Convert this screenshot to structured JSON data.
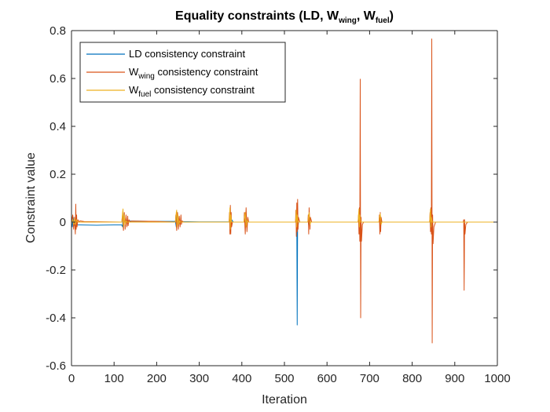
{
  "colors": {
    "ld": "#0072BD",
    "wing": "#D95319",
    "fuel": "#EDB120",
    "axis": "#262626",
    "background": "#ffffff"
  },
  "chart_data": {
    "type": "line",
    "title": {
      "main": "Equality constraints (LD, W",
      "sub1": "wing",
      "sep": ", W",
      "sub2": "fuel",
      "end": ")"
    },
    "xlabel": "Iteration",
    "ylabel": "Constraint value",
    "xlim": [
      0,
      1000
    ],
    "ylim": [
      -0.6,
      0.8
    ],
    "xticks": [
      0,
      100,
      200,
      300,
      400,
      500,
      600,
      700,
      800,
      900,
      1000
    ],
    "yticks": [
      -0.6,
      -0.4,
      -0.2,
      0,
      0.2,
      0.4,
      0.6,
      0.8
    ],
    "xtick_labels": [
      "0",
      "100",
      "200",
      "300",
      "400",
      "500",
      "600",
      "700",
      "800",
      "900",
      "1000"
    ],
    "ytick_labels": [
      "-0.6",
      "-0.4",
      "-0.2",
      "0",
      "0.2",
      "0.4",
      "0.6",
      "0.8"
    ],
    "legend": {
      "location": "top-left",
      "entries": [
        {
          "text": "LD consistency constraint"
        },
        {
          "base": "W",
          "sub": "wing",
          "text": " consistency constraint"
        },
        {
          "base": "W",
          "sub": "fuel",
          "text": " consistency constraint"
        }
      ]
    },
    "series": [
      {
        "name": "LD consistency constraint",
        "points": [
          [
            0,
            0
          ],
          [
            2,
            -0.02
          ],
          [
            4,
            0.02
          ],
          [
            6,
            -0.01
          ],
          [
            8,
            -0.015
          ],
          [
            10,
            -0.005
          ],
          [
            12,
            -0.012
          ],
          [
            20,
            -0.012
          ],
          [
            60,
            -0.013
          ],
          [
            100,
            -0.012
          ],
          [
            118,
            -0.012
          ],
          [
            120,
            -0.02
          ],
          [
            121,
            0.04
          ],
          [
            122,
            -0.01
          ],
          [
            124,
            0.02
          ],
          [
            126,
            -0.01
          ],
          [
            128,
            0.01
          ],
          [
            130,
            0.005
          ],
          [
            150,
            0.004
          ],
          [
            200,
            0.003
          ],
          [
            244,
            0.003
          ],
          [
            246,
            -0.02
          ],
          [
            247,
            0.04
          ],
          [
            248,
            -0.015
          ],
          [
            250,
            0.02
          ],
          [
            252,
            -0.01
          ],
          [
            254,
            0.005
          ],
          [
            260,
            0.002
          ],
          [
            300,
            0.001
          ],
          [
            372,
            0.001
          ],
          [
            373,
            -0.02
          ],
          [
            374,
            0.04
          ],
          [
            375,
            -0.015
          ],
          [
            376,
            0.01
          ],
          [
            380,
            0.0
          ],
          [
            408,
            0.0
          ],
          [
            409,
            -0.02
          ],
          [
            410,
            0.03
          ],
          [
            411,
            -0.01
          ],
          [
            412,
            0.0
          ],
          [
            528,
            0.0
          ],
          [
            529,
            0.02
          ],
          [
            530,
            -0.43
          ],
          [
            531,
            0.02
          ],
          [
            532,
            -0.02
          ],
          [
            533,
            0.0
          ],
          [
            556,
            0.0
          ],
          [
            557,
            -0.01
          ],
          [
            558,
            0.02
          ],
          [
            559,
            -0.01
          ],
          [
            560,
            0.0
          ],
          [
            676,
            0.0
          ],
          [
            677,
            0.02
          ],
          [
            678,
            -0.02
          ],
          [
            679,
            0.02
          ],
          [
            680,
            0.0
          ],
          [
            724,
            0.0
          ],
          [
            725,
            0.03
          ],
          [
            726,
            -0.02
          ],
          [
            727,
            0.01
          ],
          [
            728,
            0.0
          ],
          [
            842,
            0.0
          ],
          [
            843,
            -0.02
          ],
          [
            844,
            0.03
          ],
          [
            845,
            -0.01
          ],
          [
            846,
            0.0
          ],
          [
            1000,
            0.0
          ]
        ]
      },
      {
        "name": "Wwing consistency constraint",
        "points": [
          [
            0,
            0
          ],
          [
            3,
            0.03
          ],
          [
            5,
            -0.03
          ],
          [
            7,
            0.02
          ],
          [
            9,
            -0.05
          ],
          [
            10,
            0.075
          ],
          [
            11,
            -0.03
          ],
          [
            12,
            0.03
          ],
          [
            13,
            -0.02
          ],
          [
            15,
            0.01
          ],
          [
            18,
            0.0
          ],
          [
            20,
            0.005
          ],
          [
            30,
            0.002
          ],
          [
            118,
            0.0
          ],
          [
            120,
            0.03
          ],
          [
            122,
            -0.035
          ],
          [
            124,
            0.04
          ],
          [
            126,
            -0.03
          ],
          [
            128,
            0.03
          ],
          [
            130,
            -0.02
          ],
          [
            132,
            0.025
          ],
          [
            133,
            -0.015
          ],
          [
            135,
            0.01
          ],
          [
            138,
            0.0
          ],
          [
            140,
            0.004
          ],
          [
            200,
            0.003
          ],
          [
            244,
            0.0
          ],
          [
            245,
            0.03
          ],
          [
            247,
            -0.035
          ],
          [
            249,
            0.04
          ],
          [
            251,
            -0.03
          ],
          [
            253,
            0.025
          ],
          [
            255,
            -0.02
          ],
          [
            257,
            0.03
          ],
          [
            258,
            -0.01
          ],
          [
            260,
            0.005
          ],
          [
            263,
            0.0
          ],
          [
            370,
            0.0
          ],
          [
            371,
            0.04
          ],
          [
            372,
            -0.05
          ],
          [
            373,
            0.07
          ],
          [
            374,
            -0.05
          ],
          [
            375,
            0.04
          ],
          [
            376,
            -0.02
          ],
          [
            378,
            0.0
          ],
          [
            405,
            0.0
          ],
          [
            406,
            0.04
          ],
          [
            408,
            -0.05
          ],
          [
            410,
            0.06
          ],
          [
            412,
            -0.04
          ],
          [
            414,
            0.02
          ],
          [
            416,
            0.0
          ],
          [
            526,
            0.0
          ],
          [
            527,
            0.05
          ],
          [
            528,
            -0.06
          ],
          [
            529,
            0.08
          ],
          [
            530,
            -0.04
          ],
          [
            531,
            0.095
          ],
          [
            532,
            -0.03
          ],
          [
            533,
            0.02
          ],
          [
            536,
            0.0
          ],
          [
            555,
            0.0
          ],
          [
            556,
            0.03
          ],
          [
            557,
            -0.05
          ],
          [
            558,
            0.06
          ],
          [
            560,
            -0.03
          ],
          [
            561,
            0.02
          ],
          [
            564,
            0.0
          ],
          [
            673,
            0.0
          ],
          [
            674,
            0.03
          ],
          [
            675,
            -0.05
          ],
          [
            676,
            0.06
          ],
          [
            677,
            -0.08
          ],
          [
            678,
            0.597
          ],
          [
            679,
            -0.4
          ],
          [
            680,
            0.02
          ],
          [
            681,
            -0.08
          ],
          [
            683,
            -0.01
          ],
          [
            686,
            0.0
          ],
          [
            722,
            0.0
          ],
          [
            723,
            0.03
          ],
          [
            724,
            -0.05
          ],
          [
            725,
            0.04
          ],
          [
            726,
            -0.04
          ],
          [
            727,
            0.02
          ],
          [
            729,
            0.0
          ],
          [
            841,
            0.0
          ],
          [
            842,
            0.04
          ],
          [
            843,
            -0.04
          ],
          [
            844,
            0.06
          ],
          [
            845,
            -0.05
          ],
          [
            846,
            0.765
          ],
          [
            847,
            -0.505
          ],
          [
            848,
            0.03
          ],
          [
            849,
            -0.09
          ],
          [
            851,
            -0.02
          ],
          [
            855,
            0.0
          ],
          [
            920,
            0.0
          ],
          [
            921,
            0.01
          ],
          [
            922,
            -0.285
          ],
          [
            923,
            0.01
          ],
          [
            924,
            -0.05
          ],
          [
            926,
            -0.01
          ],
          [
            930,
            0.0
          ],
          [
            1000,
            0.0
          ]
        ]
      },
      {
        "name": "Wfuel consistency constraint",
        "points": [
          [
            0,
            0
          ],
          [
            3,
            0.01
          ],
          [
            5,
            -0.01
          ],
          [
            7,
            0.015
          ],
          [
            9,
            -0.01
          ],
          [
            12,
            0.01
          ],
          [
            15,
            0.0
          ],
          [
            118,
            0.0
          ],
          [
            120,
            0.04
          ],
          [
            121,
            0.055
          ],
          [
            122,
            -0.02
          ],
          [
            124,
            0.03
          ],
          [
            126,
            -0.01
          ],
          [
            128,
            0.005
          ],
          [
            130,
            0.0
          ],
          [
            244,
            0.0
          ],
          [
            246,
            0.04
          ],
          [
            247,
            0.05
          ],
          [
            248,
            -0.02
          ],
          [
            250,
            0.03
          ],
          [
            252,
            -0.01
          ],
          [
            254,
            0.005
          ],
          [
            256,
            0.0
          ],
          [
            370,
            0.0
          ],
          [
            371,
            0.02
          ],
          [
            372,
            0.06
          ],
          [
            373,
            -0.03
          ],
          [
            374,
            0.03
          ],
          [
            376,
            0.0
          ],
          [
            405,
            0.0
          ],
          [
            406,
            0.02
          ],
          [
            408,
            0.04
          ],
          [
            410,
            -0.02
          ],
          [
            412,
            0.01
          ],
          [
            414,
            0.0
          ],
          [
            526,
            0.0
          ],
          [
            527,
            0.02
          ],
          [
            528,
            0.05
          ],
          [
            529,
            -0.02
          ],
          [
            530,
            0.03
          ],
          [
            532,
            0.0
          ],
          [
            555,
            0.0
          ],
          [
            556,
            0.015
          ],
          [
            558,
            0.04
          ],
          [
            560,
            -0.01
          ],
          [
            562,
            0.0
          ],
          [
            673,
            0.0
          ],
          [
            674,
            0.03
          ],
          [
            675,
            0.055
          ],
          [
            676,
            -0.02
          ],
          [
            677,
            0.03
          ],
          [
            679,
            0.0
          ],
          [
            722,
            0.0
          ],
          [
            723,
            0.02
          ],
          [
            725,
            0.035
          ],
          [
            727,
            -0.01
          ],
          [
            729,
            0.0
          ],
          [
            841,
            0.0
          ],
          [
            842,
            0.03
          ],
          [
            843,
            0.055
          ],
          [
            844,
            -0.02
          ],
          [
            845,
            0.02
          ],
          [
            847,
            0.0
          ],
          [
            1000,
            0.0
          ]
        ]
      }
    ]
  }
}
